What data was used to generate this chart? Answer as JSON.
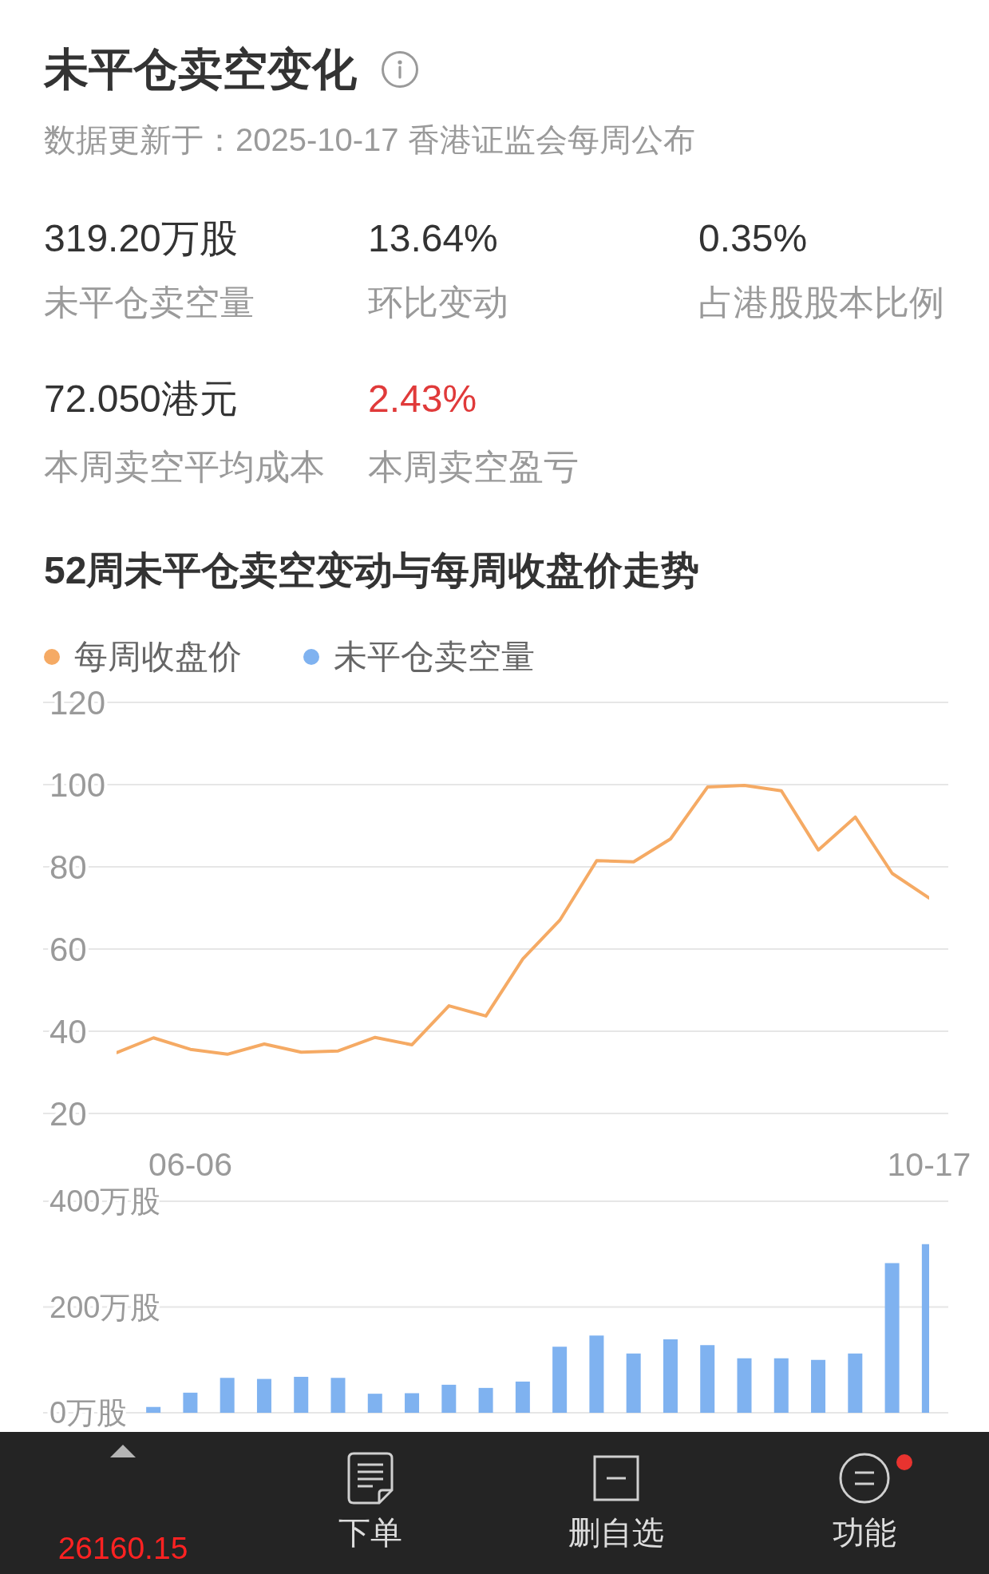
{
  "chart_data": [
    {
      "type": "other",
      "title": "未平仓卖空变化",
      "subtitle": "数据更新于：2025-10-17 香港证监会每周公布",
      "annotations": [
        "319.20万股",
        "未平仓卖空量",
        "13.64%",
        "环比变动",
        "0.35%",
        "占港股股本比例",
        "72.050港元",
        "本周卖空平均成本",
        "2.43%",
        "本周卖空盈亏"
      ]
    },
    {
      "type": "line",
      "title": "52周未平仓卖空变动与每周收盘价走势",
      "categories": [
        null,
        null,
        "06-06",
        null,
        null,
        null,
        null,
        null,
        null,
        null,
        null,
        null,
        null,
        null,
        null,
        null,
        null,
        null,
        null,
        null,
        null,
        null,
        "10-17"
      ],
      "series": [
        {
          "name": "每周收盘价",
          "color": "#f5aa64",
          "values": [
            34.8,
            38.4,
            35.6,
            34.4,
            36.9,
            34.9,
            35.2,
            38.5,
            36.7,
            46.2,
            43.7,
            57.6,
            67.0,
            81.5,
            81.2,
            86.8,
            99.4,
            99.8,
            98.5,
            84.1,
            92.1,
            78.4,
            72.4
          ]
        }
      ],
      "ylim": [
        20,
        120
      ],
      "yticks": [
        20,
        40,
        60,
        80,
        100,
        120
      ],
      "grid": "y",
      "legend": "top left"
    },
    {
      "type": "bar",
      "categories": [
        null,
        null,
        null,
        null,
        null,
        null,
        null,
        null,
        null,
        null,
        null,
        null,
        null,
        null,
        null,
        null,
        null,
        null,
        null,
        null,
        null,
        null,
        null
      ],
      "series": [
        {
          "name": "未平仓卖空量",
          "color": "#7fb2f0",
          "values": [
            null,
            11,
            38,
            66,
            64,
            68,
            66,
            36,
            37,
            53,
            47,
            59,
            125,
            146,
            112,
            139,
            128,
            103,
            103,
            100,
            112,
            283,
            319
          ]
        }
      ],
      "ylim": [
        0,
        400
      ],
      "yticks": [
        {
          "value": 0,
          "label": "0万股"
        },
        {
          "value": 200,
          "label": "200万股"
        },
        {
          "value": 400,
          "label": "400万股"
        }
      ],
      "grid": "y",
      "legend": "top left",
      "tick_labels": "y"
    },
    {
      "type": "other",
      "annotations": [
        "26160.15",
        "下单",
        "删自选",
        "功能"
      ]
    }
  ]
}
